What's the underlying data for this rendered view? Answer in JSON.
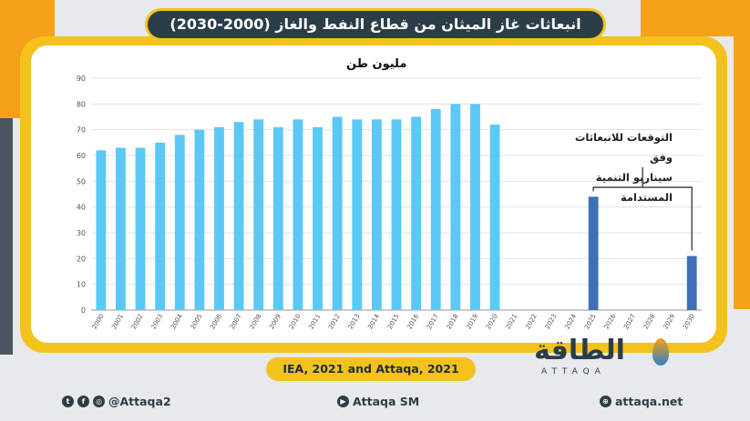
{
  "header": {
    "title": "انبعاثات غاز الميثان من قطاع النفط والغاز (2000-2030)"
  },
  "chart_data": {
    "type": "bar",
    "ylabel": "مليون طن",
    "ylim": [
      0,
      90
    ],
    "yticks": [
      0,
      10,
      20,
      30,
      40,
      50,
      60,
      70,
      80,
      90
    ],
    "categories": [
      "2000",
      "2001",
      "2002",
      "2003",
      "2004",
      "2005",
      "2006",
      "2007",
      "2008",
      "2009",
      "2010",
      "2011",
      "2012",
      "2013",
      "2014",
      "2015",
      "2016",
      "2017",
      "2018",
      "2019",
      "2020",
      "2021",
      "2022",
      "2023",
      "2024",
      "2025",
      "2026",
      "2027",
      "2028",
      "2029",
      "2030"
    ],
    "series": [
      {
        "values": [
          62,
          63,
          63,
          65,
          68,
          70,
          71,
          73,
          74,
          71,
          74,
          71,
          75,
          74,
          74,
          74,
          75,
          78,
          80,
          80,
          72,
          null,
          null,
          null,
          null,
          null,
          null,
          null,
          null,
          null,
          null
        ],
        "color": "#5bc8f5"
      },
      {
        "values": [
          null,
          null,
          null,
          null,
          null,
          null,
          null,
          null,
          null,
          null,
          null,
          null,
          null,
          null,
          null,
          null,
          null,
          null,
          null,
          null,
          null,
          null,
          null,
          null,
          null,
          44,
          null,
          null,
          null,
          null,
          21
        ],
        "color": "#3f6fb6"
      }
    ],
    "annotation": [
      "التوقعات للانبعاثات وفق",
      "سيناريو التنمية المستدامة"
    ]
  },
  "source": "IEA, 2021 and Attaqa, 2021",
  "logo": {
    "arabic": "الطاقة",
    "latin": "ATTAQA"
  },
  "footer": {
    "social": "@Attaqa2",
    "youtube": "Attaqa SM",
    "website": "attaqa.net"
  }
}
